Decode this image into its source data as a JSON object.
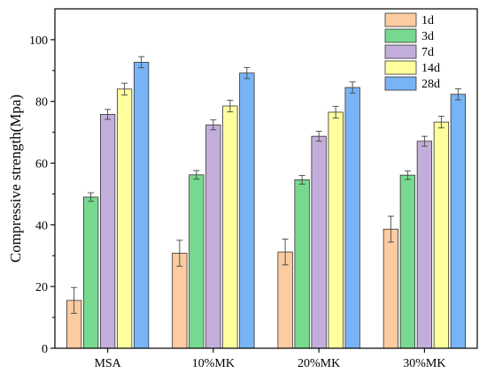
{
  "chart_data": {
    "type": "bar",
    "title": "",
    "xlabel": "",
    "ylabel": "Compressive strength(Mpa)",
    "ylim": [
      0,
      110
    ],
    "yticks": [
      0,
      20,
      40,
      60,
      80,
      100
    ],
    "categories": [
      "MSA",
      "10%MK",
      "20%MK",
      "30%MK"
    ],
    "legend_position": "top-right",
    "grid": false,
    "series": [
      {
        "name": "1d",
        "color": "#FDCBA0",
        "values": [
          15.5,
          30.8,
          31.2,
          38.6
        ],
        "errors": [
          4.2,
          4.2,
          4.2,
          4.2
        ]
      },
      {
        "name": "3d",
        "color": "#77D98F",
        "values": [
          49.0,
          56.2,
          54.6,
          56.1
        ],
        "errors": [
          1.4,
          1.4,
          1.4,
          1.4
        ]
      },
      {
        "name": "7d",
        "color": "#C3AEDB",
        "values": [
          75.8,
          72.4,
          68.7,
          67.1
        ],
        "errors": [
          1.6,
          1.6,
          1.6,
          1.6
        ]
      },
      {
        "name": "14d",
        "color": "#FFFF9E",
        "values": [
          84.0,
          78.5,
          76.5,
          73.3
        ],
        "errors": [
          1.9,
          1.9,
          1.9,
          1.9
        ]
      },
      {
        "name": "28d",
        "color": "#78B4F5",
        "values": [
          92.7,
          89.2,
          84.5,
          82.3
        ],
        "errors": [
          1.8,
          1.8,
          1.8,
          1.8
        ]
      }
    ]
  }
}
